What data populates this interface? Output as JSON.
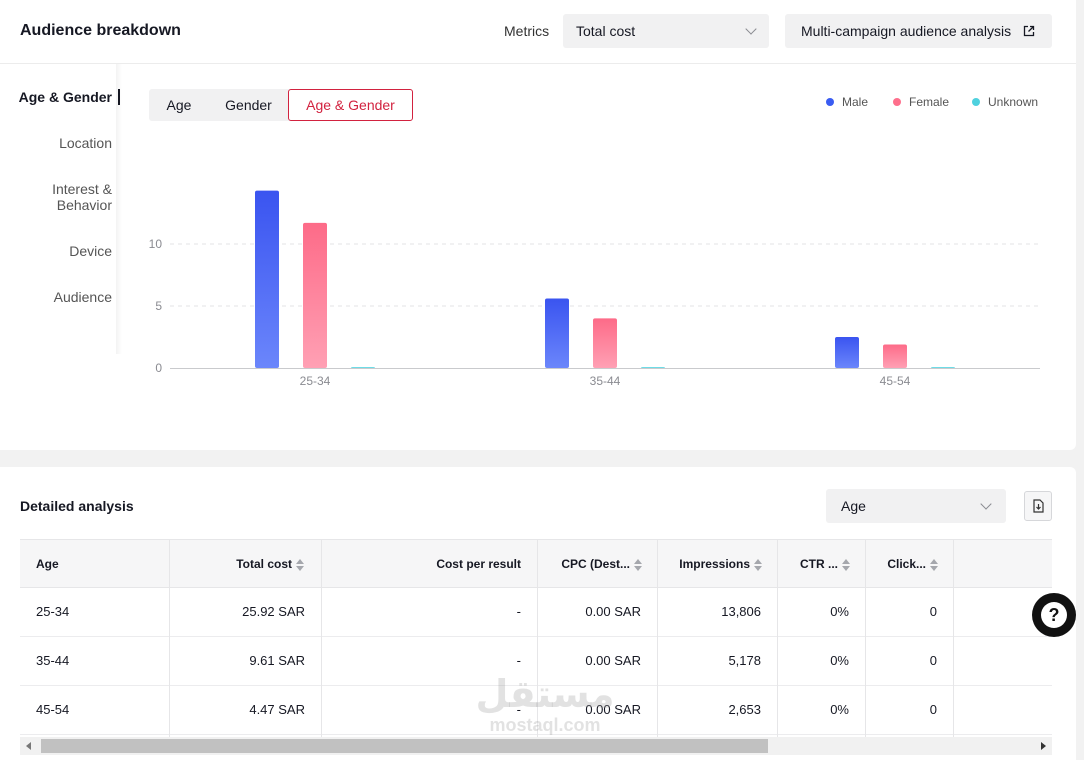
{
  "header": {
    "title": "Audience breakdown",
    "metrics_label": "Metrics",
    "metrics_value": "Total cost",
    "multi_campaign_label": "Multi-campaign audience analysis"
  },
  "side_nav": {
    "items": [
      {
        "label": "Age & Gender"
      },
      {
        "label": "Location"
      },
      {
        "label": "Interest &"
      },
      {
        "label": "Behavior"
      },
      {
        "label": "Device"
      },
      {
        "label": "Audience"
      }
    ]
  },
  "tabs": [
    {
      "label": "Age"
    },
    {
      "label": "Gender"
    },
    {
      "label": "Age & Gender"
    }
  ],
  "legend": [
    {
      "name": "Male",
      "color": "#3a5cf2"
    },
    {
      "name": "Female",
      "color": "#fe6f8c"
    },
    {
      "name": "Unknown",
      "color": "#4fd1de"
    }
  ],
  "chart_data": {
    "type": "bar",
    "categories": [
      "25-34",
      "35-44",
      "45-54"
    ],
    "series": [
      {
        "name": "Male",
        "values": [
          14.3,
          5.6,
          2.5
        ],
        "color": "#3a5cf2"
      },
      {
        "name": "Female",
        "values": [
          11.7,
          4.0,
          1.9
        ],
        "color": "#fe6f8c"
      },
      {
        "name": "Unknown",
        "values": [
          0,
          0,
          0
        ],
        "color": "#4fd1de"
      }
    ],
    "yticks": [
      "0",
      "5",
      "10"
    ],
    "ylim": [
      0,
      15
    ],
    "grid": true,
    "legend": "top-right"
  },
  "detail": {
    "title": "Detailed analysis",
    "dimension_value": "Age",
    "columns": [
      "Age",
      "Total cost",
      "Cost per result",
      "CPC (Dest...",
      "Impressions",
      "CTR ...",
      "Click..."
    ],
    "rows": [
      [
        "25-34",
        "25.92 SAR",
        "-",
        "0.00 SAR",
        "13,806",
        "0%",
        "0"
      ],
      [
        "35-44",
        "9.61 SAR",
        "-",
        "0.00 SAR",
        "5,178",
        "0%",
        "0"
      ],
      [
        "45-54",
        "4.47 SAR",
        "-",
        "0.00 SAR",
        "2,653",
        "0%",
        "0"
      ]
    ]
  },
  "help": {
    "glyph": "?"
  },
  "watermark": {
    "arabic": "مستقل",
    "latin": "mostaql.com"
  }
}
